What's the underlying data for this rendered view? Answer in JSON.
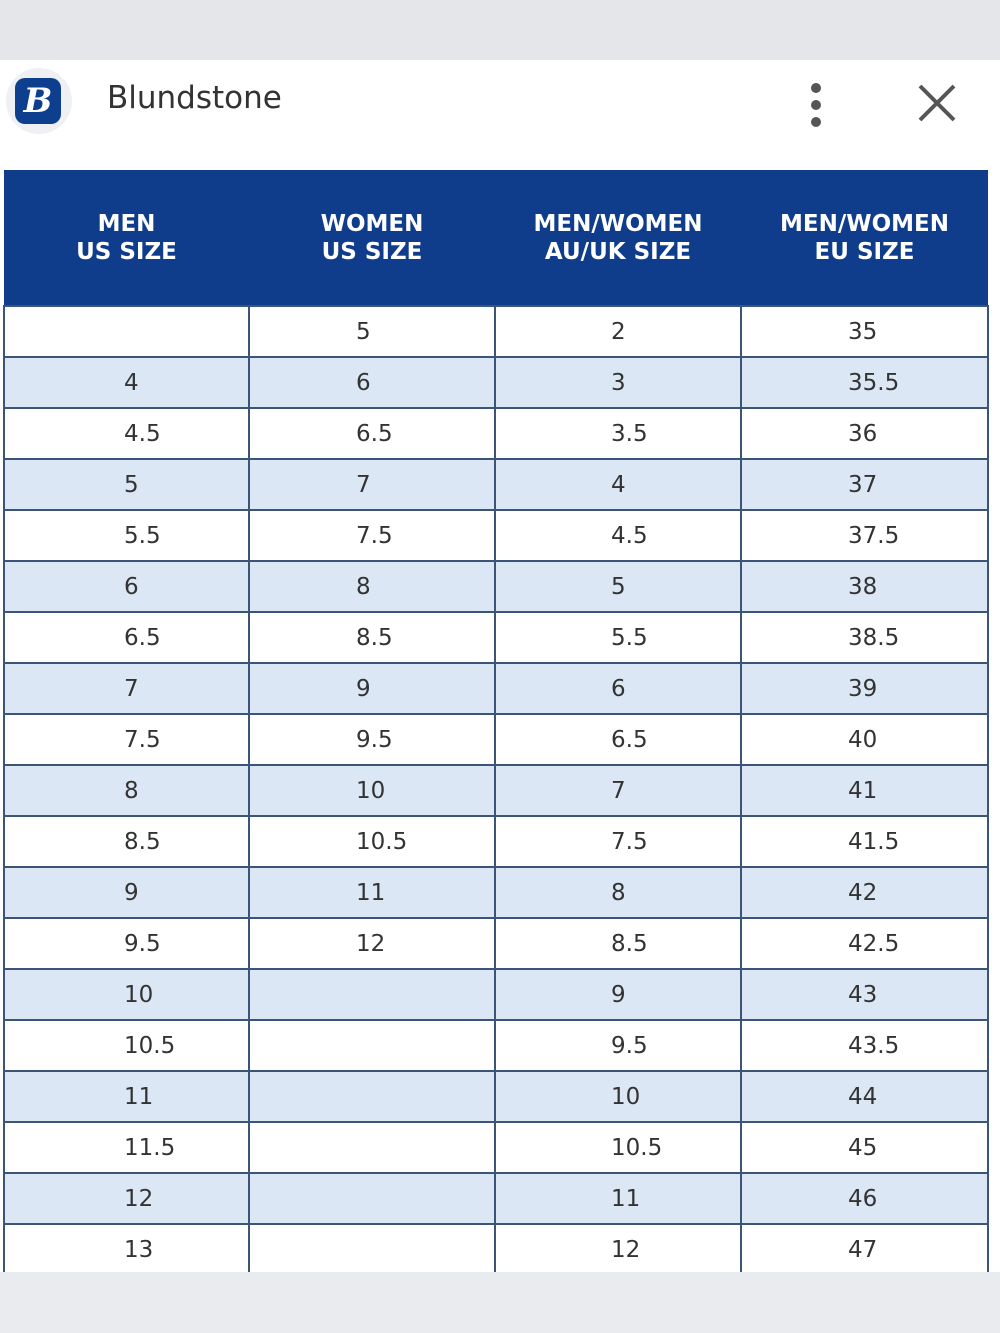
{
  "header": {
    "logo": "B",
    "title": "Blundstone"
  },
  "table": {
    "columns": [
      [
        "MEN",
        "US SIZE"
      ],
      [
        "WOMEN",
        "US SIZE"
      ],
      [
        "MEN/WOMEN",
        "AU/UK SIZE"
      ],
      [
        "MEN/WOMEN",
        "EU SIZE"
      ]
    ],
    "rows": [
      [
        null,
        "5",
        "2",
        "35"
      ],
      [
        "4",
        "6",
        "3",
        "35.5"
      ],
      [
        "4.5",
        "6.5",
        "3.5",
        "36"
      ],
      [
        "5",
        "7",
        "4",
        "37"
      ],
      [
        "5.5",
        "7.5",
        "4.5",
        "37.5"
      ],
      [
        "6",
        "8",
        "5",
        "38"
      ],
      [
        "6.5",
        "8.5",
        "5.5",
        "38.5"
      ],
      [
        "7",
        "9",
        "6",
        "39"
      ],
      [
        "7.5",
        "9.5",
        "6.5",
        "40"
      ],
      [
        "8",
        "10",
        "7",
        "41"
      ],
      [
        "8.5",
        "10.5",
        "7.5",
        "41.5"
      ],
      [
        "9",
        "11",
        "8",
        "42"
      ],
      [
        "9.5",
        "12",
        "8.5",
        "42.5"
      ],
      [
        "10",
        null,
        "9",
        "43"
      ],
      [
        "10.5",
        null,
        "9.5",
        "43.5"
      ],
      [
        "11",
        null,
        "10",
        "44"
      ],
      [
        "11.5",
        null,
        "10.5",
        "45"
      ],
      [
        "12",
        null,
        "11",
        "46"
      ],
      [
        "13",
        null,
        "12",
        "47"
      ]
    ]
  }
}
